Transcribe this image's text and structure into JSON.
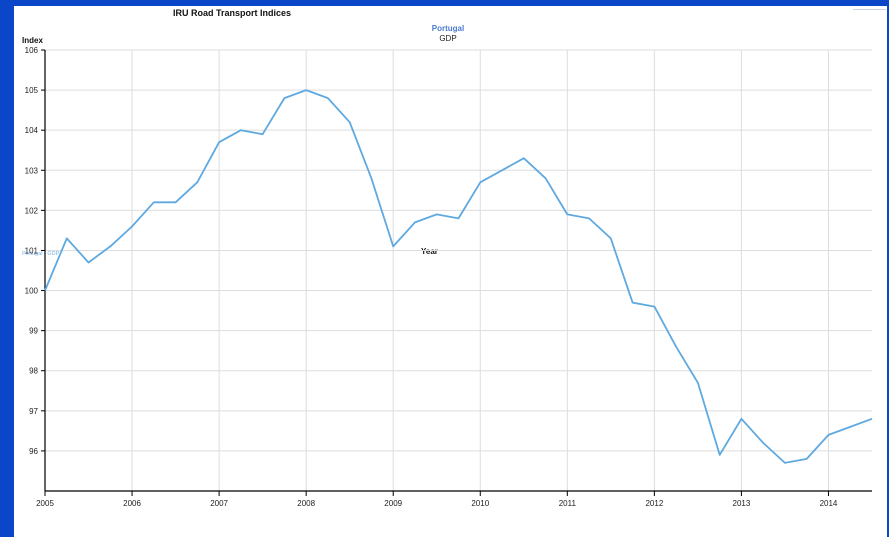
{
  "page": {
    "background": "#0b46c9",
    "panel": "#ffffff"
  },
  "chart_data": {
    "type": "line",
    "title": "IRU Road Transport Indices",
    "subtitle_country": "Portugal",
    "subtitle_series": "GDP",
    "ylabel": "Index",
    "xlabel": "Year",
    "inline_series_label": "Portugal - GDP",
    "xlim": [
      2005,
      2014.5
    ],
    "ylim": [
      95,
      106
    ],
    "y_ticks": [
      "96",
      "97",
      "98",
      "99",
      "100",
      "101",
      "102",
      "103",
      "104",
      "105",
      "106"
    ],
    "x_ticks": [
      "2005",
      "2006",
      "2007",
      "2008",
      "2009",
      "2010",
      "2011",
      "2012",
      "2013",
      "2014"
    ],
    "grid": true,
    "line_color": "#5fa9e0",
    "series": [
      {
        "x": [
          2005.0,
          2005.25,
          2005.5,
          2005.75,
          2006.0,
          2006.25,
          2006.5,
          2006.75,
          2007.0,
          2007.25,
          2007.5,
          2007.75,
          2008.0,
          2008.25,
          2008.5,
          2008.75,
          2009.0,
          2009.25,
          2009.5,
          2009.75,
          2010.0,
          2010.25,
          2010.5,
          2010.75,
          2011.0,
          2011.25,
          2011.5,
          2011.75,
          2012.0,
          2012.25,
          2012.5,
          2012.75,
          2013.0,
          2013.25,
          2013.5,
          2013.75,
          2014.0,
          2014.25,
          2014.5
        ],
        "y": [
          100.0,
          101.3,
          100.7,
          101.1,
          101.6,
          102.2,
          102.2,
          102.7,
          103.7,
          104.0,
          103.9,
          104.8,
          105.0,
          104.8,
          104.2,
          102.8,
          101.1,
          101.7,
          101.9,
          101.8,
          102.7,
          103.0,
          103.3,
          102.8,
          101.9,
          101.8,
          101.3,
          99.7,
          99.6,
          98.6,
          97.7,
          95.9,
          96.8,
          96.2,
          95.7,
          95.8,
          96.4,
          96.6,
          96.8
        ]
      }
    ]
  }
}
